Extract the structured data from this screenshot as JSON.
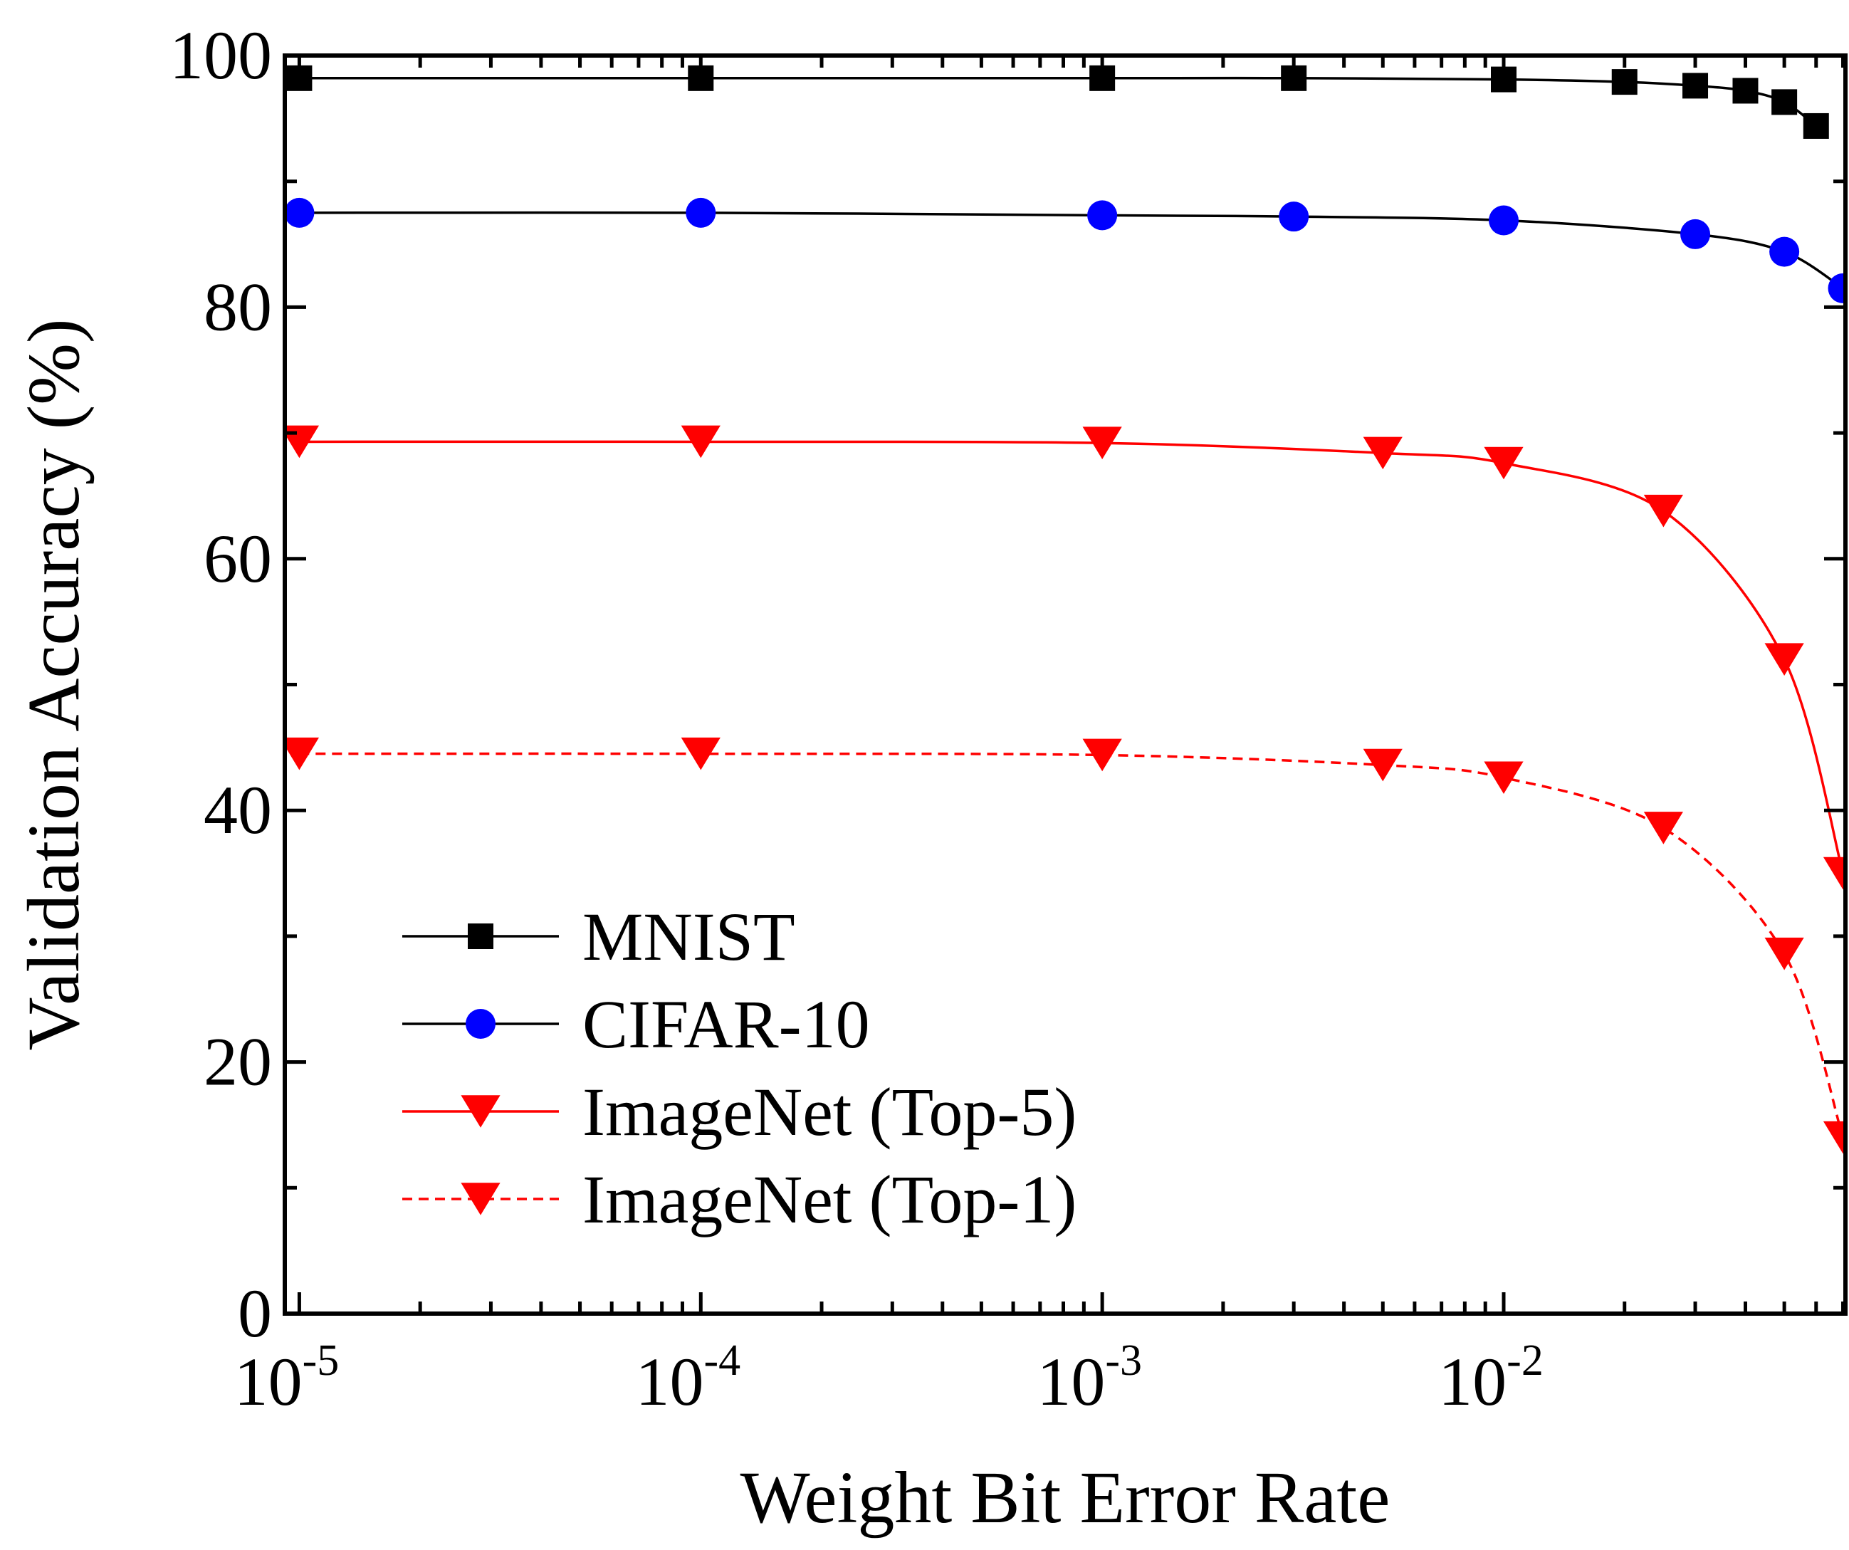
{
  "chart_data": {
    "type": "line",
    "xlabel": "Weight Bit Error Rate",
    "ylabel": "Validation Accuracy (%)",
    "xscale": "log",
    "xlim": [
      9.2e-06,
      0.071
    ],
    "ylim": [
      0,
      100
    ],
    "x_ticks": [
      {
        "base": "10",
        "exp": "-5",
        "value": 1e-05
      },
      {
        "base": "10",
        "exp": "-4",
        "value": 0.0001
      },
      {
        "base": "10",
        "exp": "-3",
        "value": 0.001
      },
      {
        "base": "10",
        "exp": "-2",
        "value": 0.01
      }
    ],
    "y_ticks": [
      {
        "label": "0",
        "value": 0
      },
      {
        "label": "20",
        "value": 20
      },
      {
        "label": "40",
        "value": 40
      },
      {
        "label": "60",
        "value": 60
      },
      {
        "label": "80",
        "value": 80
      },
      {
        "label": "100",
        "value": 100
      }
    ],
    "y_minor_ticks": [
      10,
      30,
      50,
      70,
      90
    ],
    "grid": false,
    "legend_position": "lower-left",
    "series": [
      {
        "name": "MNIST",
        "color": "#000000",
        "marker": "square",
        "line_style": "solid",
        "x": [
          1e-05,
          0.0001,
          0.001,
          0.003,
          0.01,
          0.02,
          0.03,
          0.04,
          0.05,
          0.06
        ],
        "y": [
          98.2,
          98.2,
          98.2,
          98.2,
          98.1,
          97.9,
          97.6,
          97.2,
          96.3,
          94.4
        ]
      },
      {
        "name": "CIFAR-10",
        "color": "#0000ff",
        "marker": "circle",
        "line_style": "solid",
        "x": [
          1e-05,
          0.0001,
          0.001,
          0.003,
          0.01,
          0.03,
          0.05,
          0.07
        ],
        "y": [
          87.5,
          87.5,
          87.3,
          87.2,
          86.9,
          85.8,
          84.4,
          81.5
        ]
      },
      {
        "name": "ImageNet (Top-5)",
        "color": "#ff0000",
        "marker": "triangle-down",
        "line_style": "solid",
        "x": [
          1e-05,
          0.0001,
          0.001,
          0.005,
          0.01,
          0.025,
          0.05,
          0.07
        ],
        "y": [
          69.3,
          69.3,
          69.2,
          68.4,
          67.6,
          63.8,
          52.0,
          35.0
        ]
      },
      {
        "name": "ImageNet (Top-1)",
        "color": "#ff0000",
        "marker": "triangle-down",
        "line_style": "dashed",
        "x": [
          1e-05,
          0.0001,
          0.001,
          0.005,
          0.01,
          0.025,
          0.05,
          0.07
        ],
        "y": [
          44.5,
          44.5,
          44.4,
          43.6,
          42.6,
          38.6,
          28.6,
          14.0
        ]
      }
    ]
  }
}
